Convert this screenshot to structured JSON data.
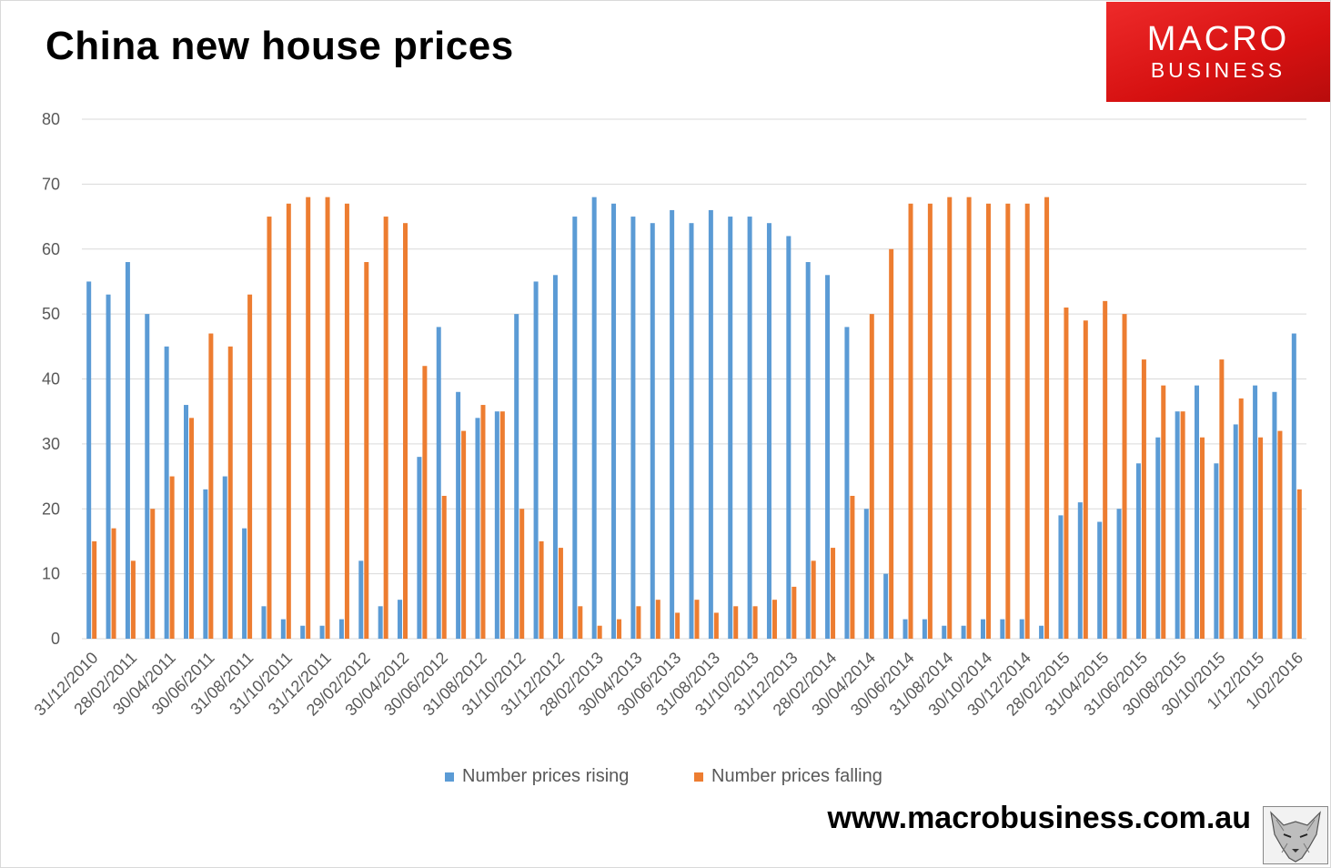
{
  "header": {
    "title": "China new house prices",
    "logo_line1": "MACRO",
    "logo_line2": "BUSINESS"
  },
  "footer": {
    "website": "www.macrobusiness.com.au"
  },
  "colors": {
    "rising": "#5b9bd5",
    "falling": "#ed7d31",
    "grid": "#d9d9d9",
    "tick_text": "#595959"
  },
  "chart_data": {
    "type": "bar",
    "title": "China new house prices",
    "xlabel": "",
    "ylabel": "",
    "ylim": [
      0,
      80
    ],
    "yticks": [
      0,
      10,
      20,
      30,
      40,
      50,
      60,
      70,
      80
    ],
    "grid": true,
    "legend_position": "bottom",
    "categories": [
      "31/12/2010",
      "31/01/2011",
      "28/02/2011",
      "31/03/2011",
      "30/04/2011",
      "31/05/2011",
      "30/06/2011",
      "31/07/2011",
      "31/08/2011",
      "30/09/2011",
      "31/10/2011",
      "30/11/2011",
      "31/12/2011",
      "31/01/2012",
      "29/02/2012",
      "31/03/2012",
      "30/04/2012",
      "31/05/2012",
      "30/06/2012",
      "31/07/2012",
      "31/08/2012",
      "30/09/2012",
      "31/10/2012",
      "30/11/2012",
      "31/12/2012",
      "31/01/2013",
      "28/02/2013",
      "31/03/2013",
      "30/04/2013",
      "31/05/2013",
      "30/06/2013",
      "31/07/2013",
      "31/08/2013",
      "30/09/2013",
      "31/10/2013",
      "30/11/2013",
      "31/12/2013",
      "31/01/2014",
      "28/02/2014",
      "31/03/2014",
      "30/04/2014",
      "31/05/2014",
      "30/06/2014",
      "31/07/2014",
      "31/08/2014",
      "30/09/2014",
      "30/10/2014",
      "30/11/2014",
      "30/12/2014",
      "31/01/2015",
      "28/02/2015",
      "31/03/2015",
      "31/04/2015",
      "31/05/2015",
      "31/06/2015",
      "31/07/2015",
      "30/08/2015",
      "30/09/2015",
      "30/10/2015",
      "30/11/2015",
      "1/12/2015",
      "1/01/2016",
      "1/02/2016"
    ],
    "tick_labels": [
      "31/12/2010",
      "28/02/2011",
      "30/04/2011",
      "30/06/2011",
      "31/08/2011",
      "31/10/2011",
      "31/12/2011",
      "29/02/2012",
      "30/04/2012",
      "30/06/2012",
      "31/08/2012",
      "31/10/2012",
      "31/12/2012",
      "28/02/2013",
      "30/04/2013",
      "30/06/2013",
      "31/08/2013",
      "31/10/2013",
      "31/12/2013",
      "28/02/2014",
      "30/04/2014",
      "30/06/2014",
      "31/08/2014",
      "30/10/2014",
      "30/12/2014",
      "28/02/2015",
      "31/04/2015",
      "31/06/2015",
      "30/08/2015",
      "30/10/2015",
      "1/12/2015",
      "1/02/2016"
    ],
    "series": [
      {
        "name": "Number prices rising",
        "values": [
          55,
          53,
          58,
          50,
          45,
          36,
          23,
          25,
          17,
          5,
          3,
          2,
          2,
          3,
          12,
          5,
          6,
          28,
          48,
          38,
          34,
          35,
          50,
          55,
          56,
          65,
          68,
          67,
          65,
          64,
          66,
          64,
          66,
          65,
          65,
          64,
          62,
          58,
          56,
          48,
          20,
          10,
          3,
          3,
          2,
          2,
          3,
          3,
          3,
          2,
          19,
          21,
          18,
          20,
          27,
          31,
          35,
          39,
          27,
          33,
          39,
          38,
          47
        ]
      },
      {
        "name": "Number prices falling",
        "values": [
          15,
          17,
          12,
          20,
          25,
          34,
          47,
          45,
          53,
          65,
          67,
          68,
          68,
          67,
          58,
          65,
          64,
          42,
          22,
          32,
          36,
          35,
          20,
          15,
          14,
          5,
          2,
          3,
          5,
          6,
          4,
          6,
          4,
          5,
          5,
          6,
          8,
          12,
          14,
          22,
          50,
          60,
          67,
          67,
          68,
          68,
          67,
          67,
          67,
          68,
          51,
          49,
          52,
          50,
          43,
          39,
          35,
          31,
          43,
          37,
          31,
          32,
          23
        ]
      }
    ]
  }
}
